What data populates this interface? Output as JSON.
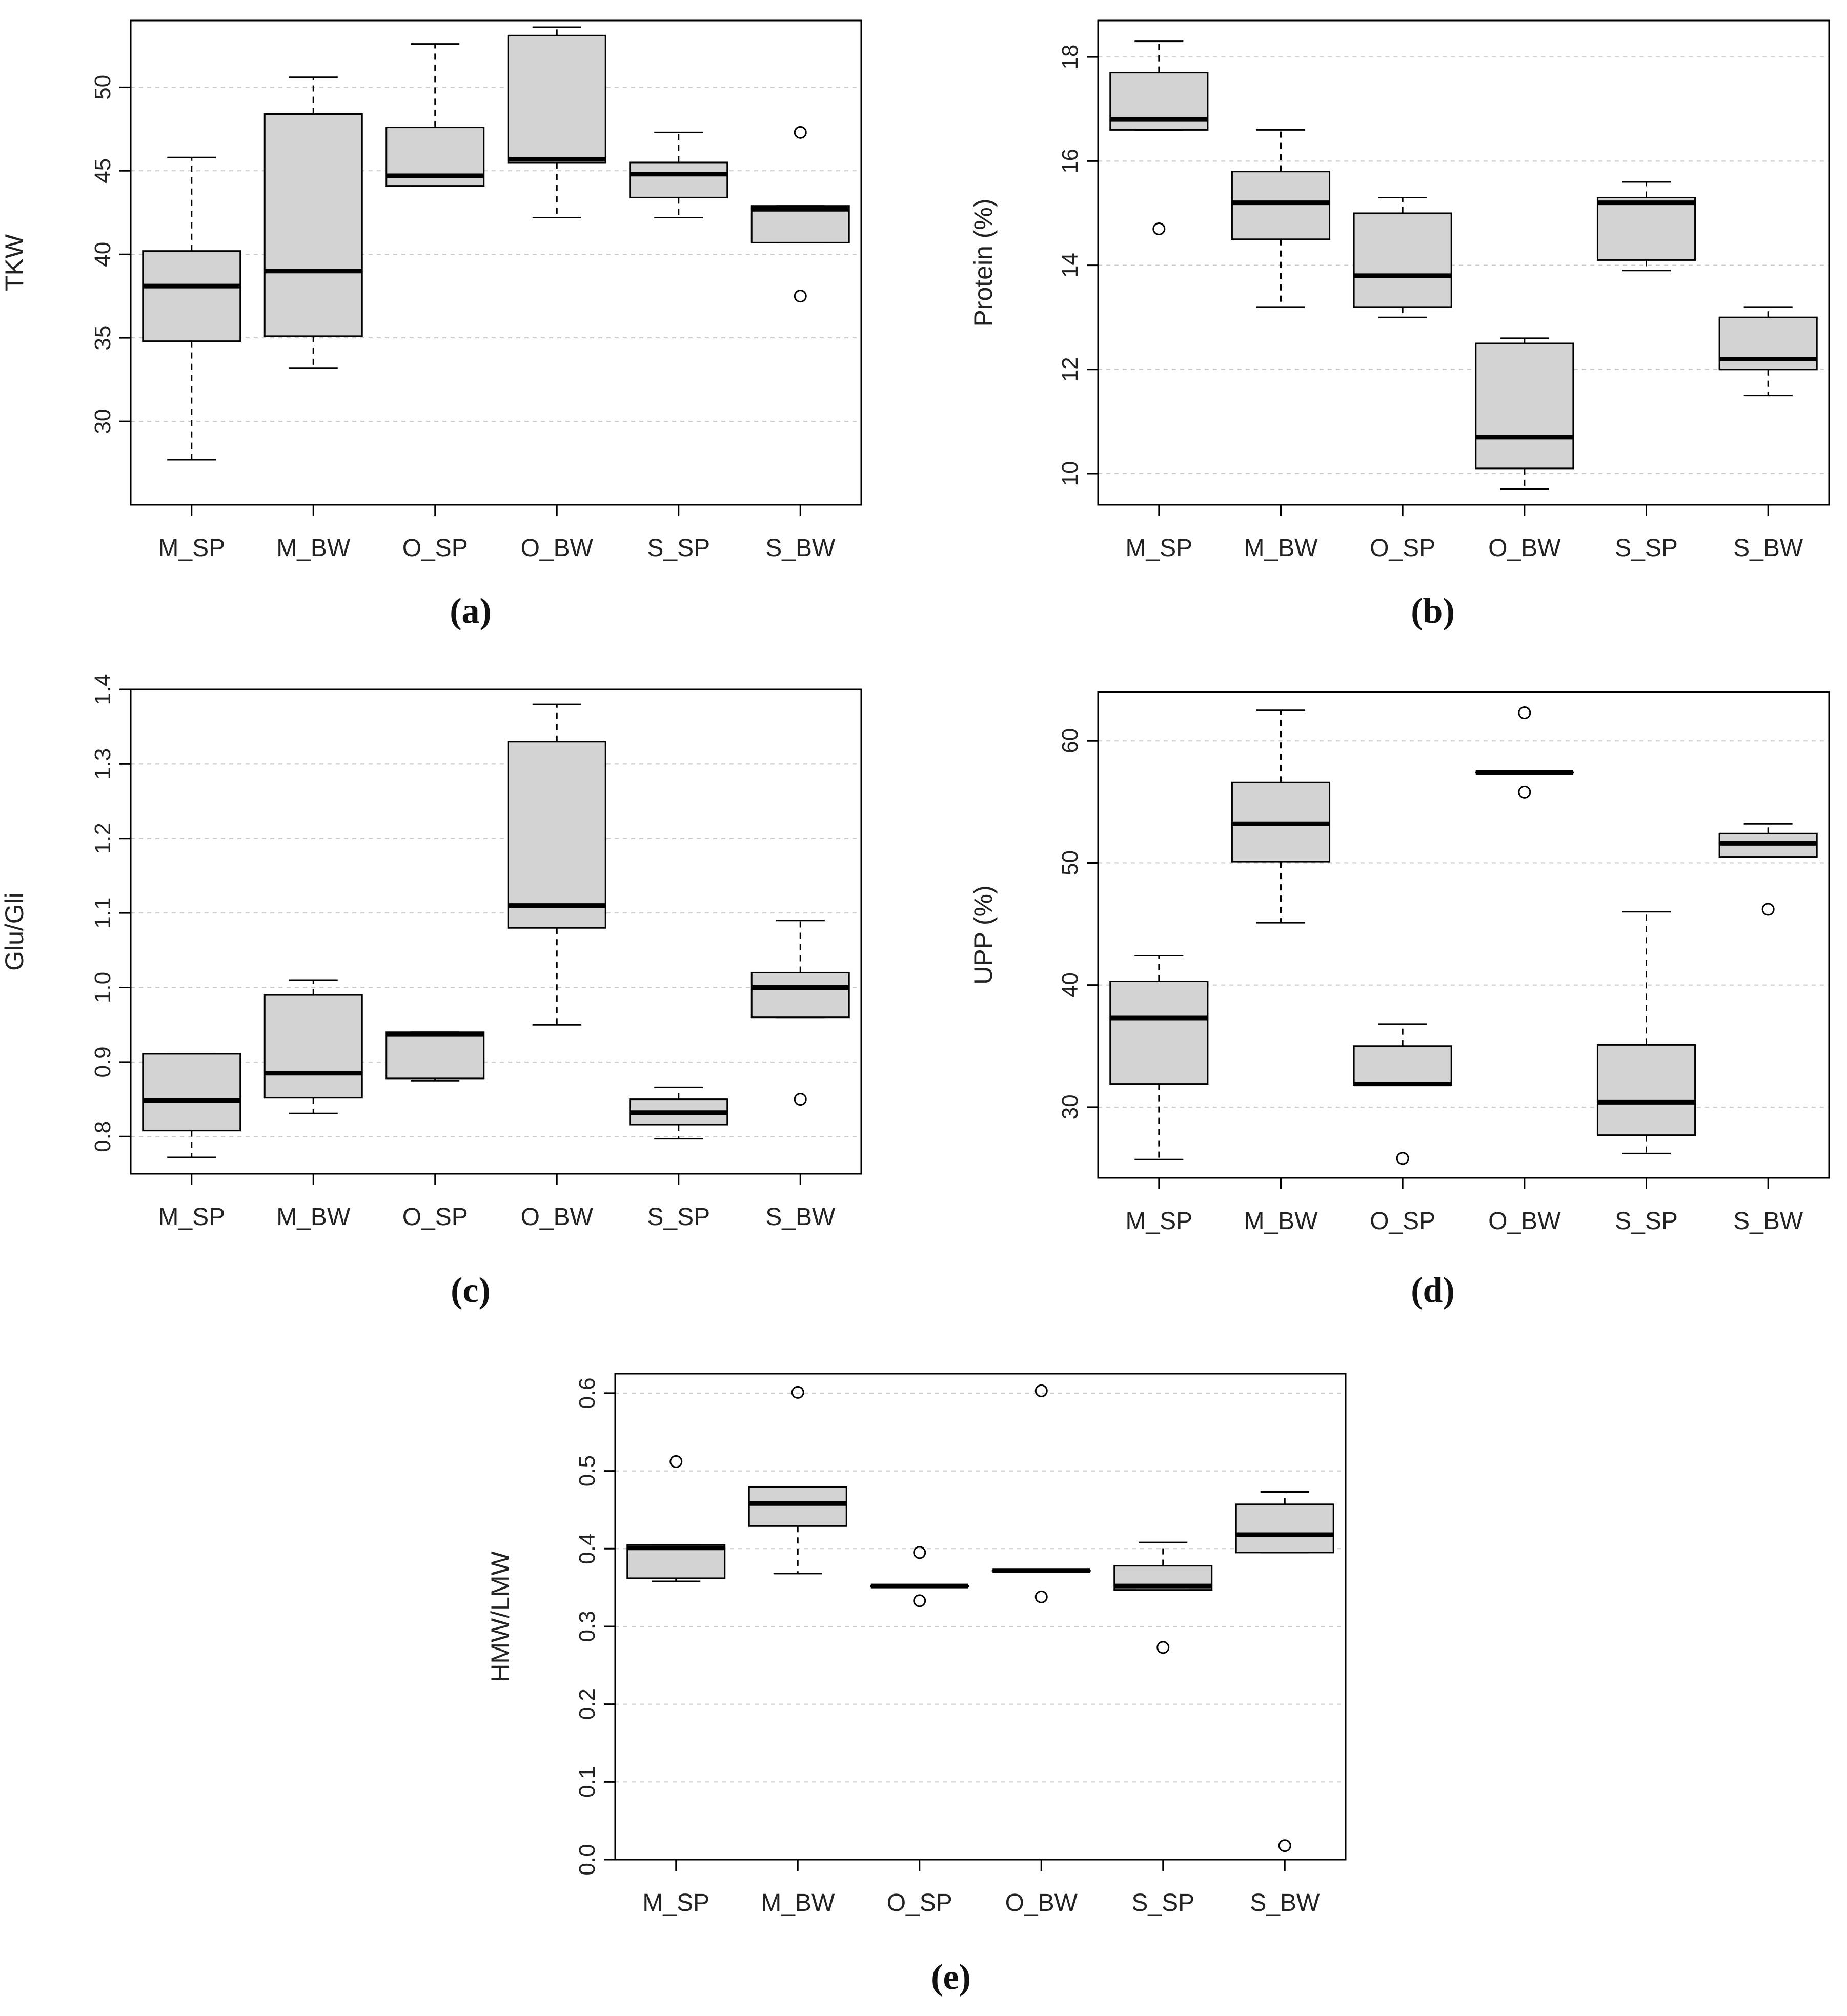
{
  "chart_data": [
    {
      "id": "a",
      "type": "boxplot",
      "panel_label": "(a)",
      "ylabel": "TKW",
      "xlabel": "",
      "ylim": [
        25,
        54
      ],
      "yticks": [
        30,
        35,
        40,
        45,
        50
      ],
      "ytick_labels": [
        "30",
        "35",
        "40",
        "45",
        "50"
      ],
      "gridlines": "horizontal-dashed",
      "categories": [
        "M_SP",
        "M_BW",
        "O_SP",
        "O_BW",
        "S_SP",
        "S_BW"
      ],
      "boxes": [
        {
          "whisker_low": 27.7,
          "q1": 34.8,
          "median": 38.1,
          "q3": 40.2,
          "whisker_high": 45.8,
          "outliers": []
        },
        {
          "whisker_low": 33.2,
          "q1": 35.1,
          "median": 39.0,
          "q3": 48.4,
          "whisker_high": 50.6,
          "outliers": []
        },
        {
          "whisker_low": 44.1,
          "q1": 44.1,
          "median": 44.7,
          "q3": 47.6,
          "whisker_high": 52.6,
          "outliers": []
        },
        {
          "whisker_low": 42.2,
          "q1": 45.5,
          "median": 45.7,
          "q3": 53.1,
          "whisker_high": 53.6,
          "outliers": []
        },
        {
          "whisker_low": 42.2,
          "q1": 43.4,
          "median": 44.8,
          "q3": 45.5,
          "whisker_high": 47.3,
          "outliers": []
        },
        {
          "whisker_low": 40.7,
          "q1": 40.7,
          "median": 42.7,
          "q3": 42.9,
          "whisker_high": 42.9,
          "outliers": [
            47.3,
            37.5
          ]
        }
      ]
    },
    {
      "id": "b",
      "type": "boxplot",
      "panel_label": "(b)",
      "ylabel": "Protein (%)",
      "xlabel": "",
      "ylim": [
        9.4,
        18.7
      ],
      "yticks": [
        10,
        12,
        14,
        16,
        18
      ],
      "ytick_labels": [
        "10",
        "12",
        "14",
        "16",
        "18"
      ],
      "gridlines": "horizontal-dashed",
      "categories": [
        "M_SP",
        "M_BW",
        "O_SP",
        "O_BW",
        "S_SP",
        "S_BW"
      ],
      "boxes": [
        {
          "whisker_low": 16.6,
          "q1": 16.6,
          "median": 16.8,
          "q3": 17.7,
          "whisker_high": 18.3,
          "outliers": [
            14.7
          ]
        },
        {
          "whisker_low": 13.2,
          "q1": 14.5,
          "median": 15.2,
          "q3": 15.8,
          "whisker_high": 16.6,
          "outliers": []
        },
        {
          "whisker_low": 13.0,
          "q1": 13.2,
          "median": 13.8,
          "q3": 15.0,
          "whisker_high": 15.3,
          "outliers": []
        },
        {
          "whisker_low": 9.7,
          "q1": 10.1,
          "median": 10.7,
          "q3": 12.5,
          "whisker_high": 12.6,
          "outliers": []
        },
        {
          "whisker_low": 13.9,
          "q1": 14.1,
          "median": 15.2,
          "q3": 15.3,
          "whisker_high": 15.6,
          "outliers": []
        },
        {
          "whisker_low": 11.5,
          "q1": 12.0,
          "median": 12.2,
          "q3": 13.0,
          "whisker_high": 13.2,
          "outliers": []
        }
      ]
    },
    {
      "id": "c",
      "type": "boxplot",
      "panel_label": "(c)",
      "ylabel": "Glu/Gli",
      "xlabel": "",
      "ylim": [
        0.75,
        1.4
      ],
      "yticks": [
        0.8,
        0.9,
        1.0,
        1.1,
        1.2,
        1.3,
        1.4
      ],
      "ytick_labels": [
        "0.8",
        "0.9",
        "1.0",
        "1.1",
        "1.2",
        "1.3",
        "1.4"
      ],
      "gridlines": "horizontal-dashed",
      "categories": [
        "M_SP",
        "M_BW",
        "O_SP",
        "O_BW",
        "S_SP",
        "S_BW"
      ],
      "boxes": [
        {
          "whisker_low": 0.772,
          "q1": 0.808,
          "median": 0.848,
          "q3": 0.911,
          "whisker_high": 0.911,
          "outliers": []
        },
        {
          "whisker_low": 0.831,
          "q1": 0.852,
          "median": 0.885,
          "q3": 0.99,
          "whisker_high": 1.01,
          "outliers": []
        },
        {
          "whisker_low": 0.875,
          "q1": 0.878,
          "median": 0.937,
          "q3": 0.94,
          "whisker_high": 0.94,
          "outliers": []
        },
        {
          "whisker_low": 0.95,
          "q1": 1.08,
          "median": 1.11,
          "q3": 1.33,
          "whisker_high": 1.38,
          "outliers": []
        },
        {
          "whisker_low": 0.797,
          "q1": 0.816,
          "median": 0.832,
          "q3": 0.85,
          "whisker_high": 0.866,
          "outliers": []
        },
        {
          "whisker_low": 0.96,
          "q1": 0.96,
          "median": 1.0,
          "q3": 1.02,
          "whisker_high": 1.09,
          "outliers": [
            0.85
          ]
        }
      ]
    },
    {
      "id": "d",
      "type": "boxplot",
      "panel_label": "(d)",
      "ylabel": "UPP (%)",
      "xlabel": "",
      "ylim": [
        24.2,
        64.0
      ],
      "yticks": [
        30,
        40,
        50,
        60
      ],
      "ytick_labels": [
        "30",
        "40",
        "50",
        "60"
      ],
      "gridlines": "horizontal-dashed",
      "categories": [
        "M_SP",
        "M_BW",
        "O_SP",
        "O_BW",
        "S_SP",
        "S_BW"
      ],
      "boxes": [
        {
          "whisker_low": 25.7,
          "q1": 31.9,
          "median": 37.3,
          "q3": 40.3,
          "whisker_high": 42.4,
          "outliers": []
        },
        {
          "whisker_low": 45.1,
          "q1": 50.1,
          "median": 53.2,
          "q3": 56.6,
          "whisker_high": 62.5,
          "outliers": []
        },
        {
          "whisker_low": 31.8,
          "q1": 31.8,
          "median": 31.9,
          "q3": 35.0,
          "whisker_high": 36.8,
          "outliers": [
            25.8
          ]
        },
        {
          "whisker_low": 57.4,
          "q1": 57.4,
          "median": 57.4,
          "q3": 57.4,
          "whisker_high": 57.4,
          "outliers": [
            62.3,
            55.8
          ]
        },
        {
          "whisker_low": 26.2,
          "q1": 27.7,
          "median": 30.4,
          "q3": 35.1,
          "whisker_high": 46.0,
          "outliers": []
        },
        {
          "whisker_low": 50.5,
          "q1": 50.5,
          "median": 51.6,
          "q3": 52.4,
          "whisker_high": 53.2,
          "outliers": [
            46.2
          ]
        }
      ]
    },
    {
      "id": "e",
      "type": "boxplot",
      "panel_label": "(e)",
      "ylabel": "HMW/LMW",
      "xlabel": "",
      "ylim": [
        0.0,
        0.625
      ],
      "yticks": [
        0.0,
        0.1,
        0.2,
        0.3,
        0.4,
        0.5,
        0.6
      ],
      "ytick_labels": [
        "0.0",
        "0.1",
        "0.2",
        "0.3",
        "0.4",
        "0.5",
        "0.6"
      ],
      "gridlines": "horizontal-dashed",
      "categories": [
        "M_SP",
        "M_BW",
        "O_SP",
        "O_BW",
        "S_SP",
        "S_BW"
      ],
      "boxes": [
        {
          "whisker_low": 0.358,
          "q1": 0.362,
          "median": 0.401,
          "q3": 0.405,
          "whisker_high": 0.405,
          "outliers": [
            0.512
          ]
        },
        {
          "whisker_low": 0.368,
          "q1": 0.429,
          "median": 0.458,
          "q3": 0.479,
          "whisker_high": 0.479,
          "outliers": [
            0.601
          ]
        },
        {
          "whisker_low": 0.352,
          "q1": 0.352,
          "median": 0.352,
          "q3": 0.352,
          "whisker_high": 0.352,
          "outliers": [
            0.395,
            0.333
          ]
        },
        {
          "whisker_low": 0.372,
          "q1": 0.372,
          "median": 0.372,
          "q3": 0.372,
          "whisker_high": 0.372,
          "outliers": [
            0.603,
            0.338
          ]
        },
        {
          "whisker_low": 0.347,
          "q1": 0.347,
          "median": 0.352,
          "q3": 0.378,
          "whisker_high": 0.408,
          "outliers": [
            0.273
          ]
        },
        {
          "whisker_low": 0.395,
          "q1": 0.395,
          "median": 0.418,
          "q3": 0.457,
          "whisker_high": 0.473,
          "outliers": [
            0.018
          ]
        }
      ]
    }
  ],
  "style": {
    "box_fill": "#d3d3d3",
    "stroke": "#000000",
    "grid_color": "#c8c8c8"
  }
}
